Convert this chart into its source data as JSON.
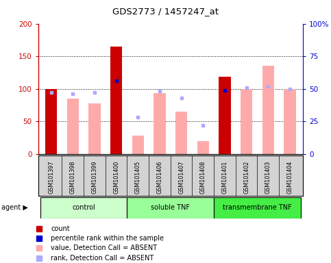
{
  "title": "GDS2773 / 1457247_at",
  "samples": [
    "GSM101397",
    "GSM101398",
    "GSM101399",
    "GSM101400",
    "GSM101405",
    "GSM101406",
    "GSM101407",
    "GSM101408",
    "GSM101401",
    "GSM101402",
    "GSM101403",
    "GSM101404"
  ],
  "groups": [
    {
      "name": "control",
      "indices": [
        0,
        1,
        2,
        3
      ],
      "color": "#ccffcc"
    },
    {
      "name": "soluble TNF",
      "indices": [
        4,
        5,
        6,
        7
      ],
      "color": "#99ff99"
    },
    {
      "name": "transmembrane TNF",
      "indices": [
        8,
        9,
        10,
        11
      ],
      "color": "#44ee44"
    }
  ],
  "value_bars": [
    100,
    85,
    78,
    165,
    28,
    93,
    65,
    20,
    118,
    100,
    135,
    100
  ],
  "value_bar_colors": [
    "#cc0000",
    "#ffaaaa",
    "#ffaaaa",
    "#cc0000",
    "#ffaaaa",
    "#ffaaaa",
    "#ffaaaa",
    "#ffaaaa",
    "#cc0000",
    "#ffaaaa",
    "#ffaaaa",
    "#ffaaaa"
  ],
  "rank_dots_right_axis": [
    47,
    46,
    47,
    56,
    28,
    48,
    43,
    22,
    49,
    51,
    52,
    50
  ],
  "rank_dot_colors": [
    "#aaaaff",
    "#aaaaff",
    "#aaaaff",
    "#0000cc",
    "#aaaaff",
    "#aaaaff",
    "#aaaaff",
    "#aaaaff",
    "#0000cc",
    "#aaaaff",
    "#aaaaff",
    "#aaaaff"
  ],
  "ylim_left": [
    0,
    200
  ],
  "ylim_right": [
    0,
    100
  ],
  "yticks_left": [
    0,
    50,
    100,
    150,
    200
  ],
  "ytick_labels_left": [
    "0",
    "50",
    "100",
    "150",
    "200"
  ],
  "yticks_right": [
    0,
    25,
    50,
    75,
    100
  ],
  "ytick_labels_right": [
    "0",
    "25",
    "50",
    "75",
    "100%"
  ],
  "left_axis_color": "#cc0000",
  "right_axis_color": "#0000cc",
  "legend_items": [
    {
      "color": "#cc0000",
      "label": "count"
    },
    {
      "color": "#0000cc",
      "label": "percentile rank within the sample"
    },
    {
      "color": "#ffaaaa",
      "label": "value, Detection Call = ABSENT"
    },
    {
      "color": "#aaaaff",
      "label": "rank, Detection Call = ABSENT"
    }
  ],
  "bg_gray": "#d3d3d3",
  "bg_white": "#ffffff"
}
